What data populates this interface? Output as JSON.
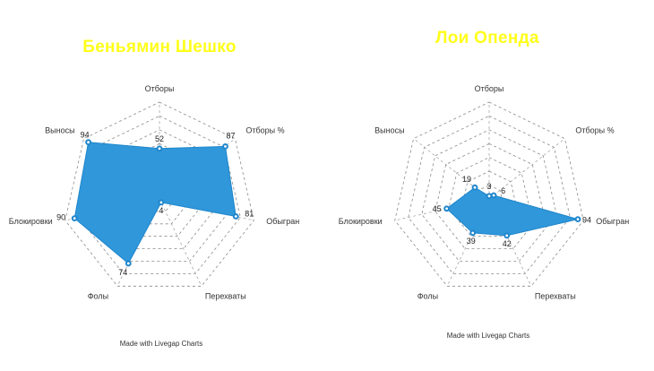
{
  "colors": {
    "title": "#ffff1a",
    "fill": "#2f97da",
    "stroke": "#1f86cc",
    "dot": "#1f86cc"
  },
  "chart_data": [
    {
      "type": "radar",
      "title": "Беньямин Шешко",
      "axes": [
        "Отборы",
        "Отборы %",
        "Обыгран",
        "Перехваты",
        "Фолы",
        "Блокировки",
        "Выносы"
      ],
      "values": [
        52,
        87,
        81,
        4,
        74,
        90,
        94
      ],
      "value_labels": [
        "52",
        "87",
        "81",
        "4",
        "74",
        "90",
        "94"
      ],
      "range": [
        0,
        100
      ],
      "grid_levels": 7,
      "credit": "Made with Livegap Charts"
    },
    {
      "type": "radar",
      "title": "Лои Опенда",
      "axes": [
        "Отборы",
        "Отборы %",
        "Обыгран",
        "Перехваты",
        "Фолы",
        "Блокировки",
        "Выносы"
      ],
      "values": [
        3,
        6,
        94,
        42,
        39,
        45,
        19
      ],
      "value_labels": [
        "3",
        "6",
        "94",
        "42",
        "39",
        "45",
        "19"
      ],
      "range": [
        0,
        100
      ],
      "grid_levels": 7,
      "credit": "Made with Livegap Charts"
    }
  ]
}
